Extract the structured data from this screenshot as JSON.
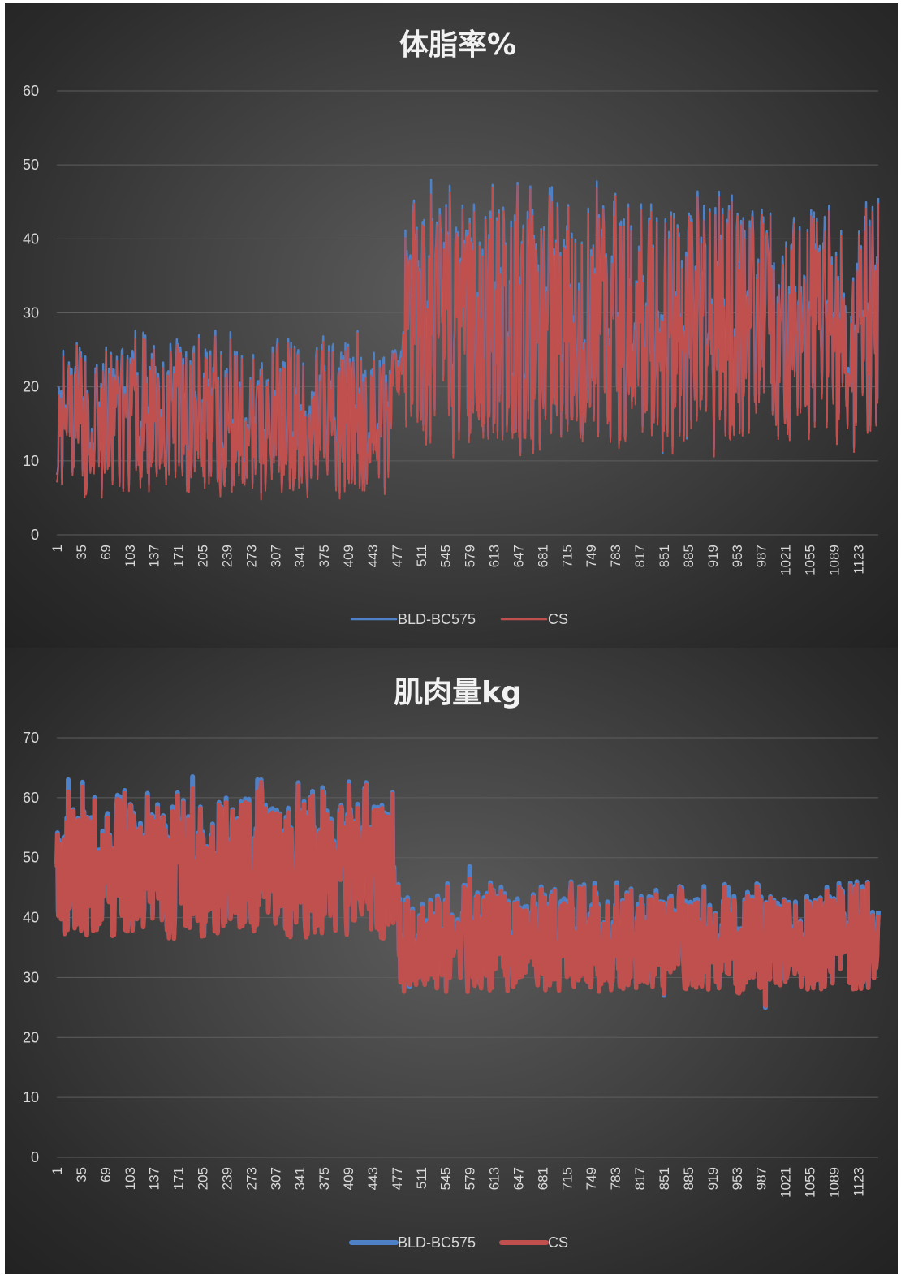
{
  "colors": {
    "series_blue": "#4f81c7",
    "series_red": "#c0504d"
  },
  "chart_data": [
    {
      "type": "line",
      "title": "体脂率%",
      "ylim": [
        0,
        60
      ],
      "yticks": [
        0,
        10,
        20,
        30,
        40,
        50,
        60
      ],
      "x_range": [
        1,
        1151
      ],
      "xticks": [
        "1",
        "35",
        "69",
        "103",
        "137",
        "171",
        "205",
        "239",
        "273",
        "307",
        "341",
        "375",
        "409",
        "443",
        "477",
        "511",
        "545",
        "579",
        "613",
        "647",
        "681",
        "715",
        "749",
        "783",
        "817",
        "851",
        "885",
        "919",
        "953",
        "987",
        "1021",
        "1055",
        "1089",
        "1123"
      ],
      "grid": true,
      "legend_position": "bottom",
      "series": [
        {
          "name": "BLD-BC575",
          "color": "#4f81c7"
        },
        {
          "name": "CS",
          "color": "#c0504d"
        }
      ],
      "segments": [
        {
          "x_start": 1,
          "x_end": 470,
          "typical_low": 5,
          "typical_high": 28,
          "mean": 16
        },
        {
          "x_start": 470,
          "x_end": 485,
          "typical_low": 18,
          "typical_high": 26,
          "mean": 22
        },
        {
          "x_start": 485,
          "x_end": 1151,
          "typical_low": 11,
          "typical_high": 48,
          "mean": 29
        }
      ],
      "notable_peaks": [
        {
          "x": 525,
          "y": 48
        },
        {
          "x": 694,
          "y": 47
        },
        {
          "x": 781,
          "y": 45
        },
        {
          "x": 907,
          "y": 44.5
        },
        {
          "x": 1076,
          "y": 43
        },
        {
          "x": 1132,
          "y": 43
        }
      ],
      "notable_troughs": [
        {
          "x": 849,
          "y": 11
        },
        {
          "x": 883,
          "y": 13
        }
      ]
    },
    {
      "type": "line",
      "title": "肌肉量kg",
      "ylim": [
        0,
        70
      ],
      "yticks": [
        0,
        10,
        20,
        30,
        40,
        50,
        60,
        70
      ],
      "x_range": [
        1,
        1151
      ],
      "xticks": [
        "1",
        "35",
        "69",
        "103",
        "137",
        "171",
        "205",
        "239",
        "273",
        "307",
        "341",
        "375",
        "409",
        "443",
        "477",
        "511",
        "545",
        "579",
        "613",
        "647",
        "681",
        "715",
        "749",
        "783",
        "817",
        "851",
        "885",
        "919",
        "953",
        "987",
        "1021",
        "1055",
        "1089",
        "1123"
      ],
      "grid": true,
      "legend_position": "bottom",
      "series": [
        {
          "name": "BLD-BC575",
          "color": "#4f81c7"
        },
        {
          "name": "CS",
          "color": "#c0504d"
        }
      ],
      "segments": [
        {
          "x_start": 1,
          "x_end": 478,
          "typical_low": 37,
          "typical_high": 63,
          "mean": 48
        },
        {
          "x_start": 478,
          "x_end": 1151,
          "typical_low": 28,
          "typical_high": 46,
          "mean": 36
        }
      ],
      "notable_peaks": [
        {
          "x": 191,
          "y": 63.5
        },
        {
          "x": 282,
          "y": 63
        },
        {
          "x": 17,
          "y": 63
        },
        {
          "x": 579,
          "y": 48.5
        },
        {
          "x": 941,
          "y": 45
        }
      ],
      "notable_troughs": [
        {
          "x": 993,
          "y": 25
        },
        {
          "x": 851,
          "y": 27
        },
        {
          "x": 495,
          "y": 28.5
        }
      ]
    }
  ]
}
